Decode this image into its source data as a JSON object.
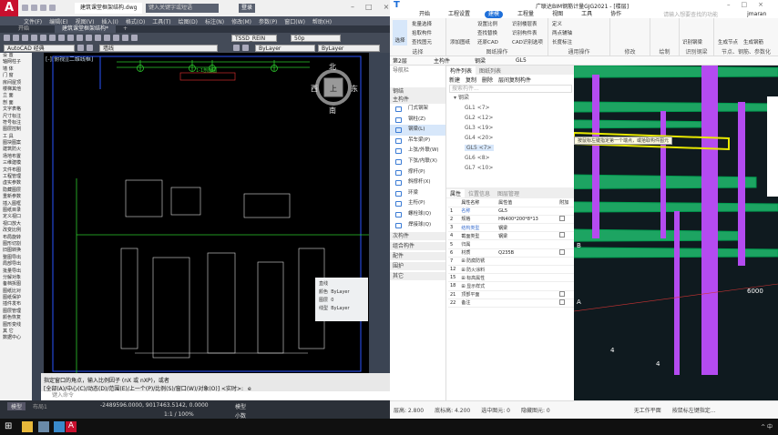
{
  "cad": {
    "title_file": "建筑课堂框架结构.dwg",
    "search_placeholder": "键入关键字或短语",
    "user": "登录",
    "menu": [
      "文件(F)",
      "编辑(E)",
      "视图(V)",
      "插入(I)",
      "格式(O)",
      "工具(T)",
      "绘图(D)",
      "标注(N)",
      "修改(M)",
      "参数(P)",
      "窗口(W)",
      "帮助(H)"
    ],
    "tabs": [
      "开始",
      "建筑课堂框架结构*"
    ],
    "workspace": "AutoCAD 经典",
    "layer": "墙线",
    "text_style": "TSSD_REIN",
    "dim_scale": "50p",
    "color": "ByLayer",
    "linetype": "ByLayer",
    "viewport_label": "[-][俯视][二维线框]",
    "viewcube": {
      "north": "北",
      "south": "南",
      "west": "西",
      "east": "东",
      "top": "上"
    },
    "palette_items": [
      "设  置",
      "轴网柱子",
      "墙  体",
      "门  窗",
      "房间屋顶",
      "楼梯其他",
      "立  面",
      "剖  面",
      "文字表格",
      "尺寸标注",
      "符号标注",
      "图层控制",
      "工  具",
      "图块图案",
      "建筑防火",
      "场地布置",
      "三维建模",
      "文件布图",
      "工程管理",
      "虚实参数",
      "隐藏图层",
      "重新参数",
      "插入图框",
      "图纸目录",
      "定义视口",
      "视口放大",
      "改变比例",
      "布局旋转",
      "图形切割",
      "旧图转换",
      "整图导出",
      "局部导出",
      "批量导出",
      "分解对象",
      "备档拆图",
      "图纸比对",
      "图纸保护",
      "插件发布",
      "图层管理",
      "颜色恢复",
      "图形变线",
      "其  它",
      "数据中心"
    ],
    "prop_popup": {
      "title": "直线",
      "color_label": "颜色",
      "color": "ByLayer",
      "layer_label": "图层",
      "layer": "0",
      "linetype_label": "线型",
      "linetype": "ByLayer"
    },
    "cmd_line1": "指定窗口的角点，输入比例因子 (nX 或 nXP)，或者",
    "cmd_line2": "[全部(A)/中心(C)/动态(D)/范围(E)/上一个(P)/比例(S)/窗口(W)/对象(O)] <实时>: _e",
    "cmd_placeholder": "键入命令",
    "layout_tabs": [
      "模型",
      "布局1"
    ],
    "coords": "-2489596.0000, 9017463.5142, 0.0000",
    "model_label": "模型",
    "scale": "1:1 / 100%",
    "units": "小数",
    "drawing_labels": {
      "title": "1-1剖面图",
      "axes": [
        "1",
        "2",
        "3",
        "4"
      ]
    }
  },
  "gd": {
    "title": "广联达BIM钢筋计量GJG2021 - [楼层]",
    "tabs": [
      "开始",
      "工程设置",
      "建模",
      "工程量",
      "视图",
      "工具",
      "协作"
    ],
    "active_tab": "建模",
    "search_placeholder": "请输入想要查找的功能",
    "user": "jmaran",
    "ribbon": {
      "select": {
        "big": "选择",
        "items": [
          "批量选择",
          "拾取构件",
          "查找图元"
        ],
        "label": "选择"
      },
      "drawing": {
        "big": "添加图纸",
        "items": [
          "设置比例",
          "查找替换",
          "还原CAD",
          "识别楼层表",
          "识别构件表",
          "CAD识别选项"
        ],
        "label": "图纸操作"
      },
      "common": {
        "items": [
          "定义",
          "两点辅轴",
          "长度标注"
        ],
        "label": "通用操作"
      },
      "modify": {
        "label": "修改"
      },
      "draw": {
        "label": "绘制"
      },
      "recognize": {
        "big": "识别钢梁",
        "label": "识别钢梁"
      },
      "node": {
        "items": [
          "生成节点",
          "生成钢筋"
        ],
        "label": "节点、钢筋、参数化"
      }
    },
    "bar": [
      "第2层",
      "主构件",
      "钢梁",
      "GL5"
    ],
    "nav_title": "导航栏",
    "nav_sections": [
      "钢结",
      "主构件"
    ],
    "nav_items": [
      "门式钢架",
      "钢柱(Z)",
      "钢梁(L)",
      "吊车梁(P)",
      "上弦/外联(W)",
      "下弦/内联(X)",
      "撑杆(P)",
      "斜撑杆(X)",
      "环梁",
      "主桁(P)",
      "螺栓球(Q)",
      "焊接球(Q)"
    ],
    "nav_active": "钢梁(L)",
    "nav_groups": [
      "次构件",
      "组合构件",
      "配件",
      "围护",
      "其它"
    ],
    "list_tabs": [
      "构件列表",
      "图纸列表"
    ],
    "list_actions": [
      "新建",
      "复制",
      "删除",
      "层间复制构件"
    ],
    "list_search": "搜索构件...",
    "list_group": "钢梁",
    "list_items": [
      "GL1 <7>",
      "GL2 <12>",
      "GL3 <19>",
      "GL4 <20>",
      "GL5 <7>",
      "GL6 <8>",
      "GL7 <10>"
    ],
    "list_active": "GL5 <7>",
    "prop_tabs": [
      "属性",
      "位置信息",
      "图层管理"
    ],
    "prop_headers": [
      "属性名称",
      "属性值",
      "附加"
    ],
    "props": [
      {
        "no": "1",
        "name": "名称",
        "value": "GL5",
        "chk": false,
        "blue": true
      },
      {
        "no": "2",
        "name": "规格",
        "value": "HN400*200*8*13",
        "chk": true
      },
      {
        "no": "3",
        "name": "结构类型",
        "value": "钢梁",
        "chk": false,
        "blue": true
      },
      {
        "no": "4",
        "name": "截面类型",
        "value": "钢梁",
        "chk": true
      },
      {
        "no": "5",
        "name": "归属",
        "value": "",
        "chk": false
      },
      {
        "no": "6",
        "name": "材质",
        "value": "Q235B",
        "chk": true
      },
      {
        "no": "7",
        "name": "⊞ 防腐防锈",
        "value": "",
        "chk": false
      },
      {
        "no": "12",
        "name": "⊞ 防火涂料",
        "value": "",
        "chk": false
      },
      {
        "no": "15",
        "name": "⊞ 标高属性",
        "value": "",
        "chk": false
      },
      {
        "no": "18",
        "name": "⊞ 显示样式",
        "value": "",
        "chk": false
      },
      {
        "no": "21",
        "name": "顶部平面",
        "value": "",
        "chk": true
      },
      {
        "no": "22",
        "name": "备注",
        "value": "",
        "chk": true
      }
    ],
    "tooltip": "按鼠标左键指定第一个端点，或拾取构件图元",
    "axis_labels": [
      "B",
      "A",
      "4",
      "4",
      "6000"
    ],
    "status": [
      "层高: 2.800",
      "底标高: 4.200",
      "选中图元: 0",
      "隐藏图元: 0"
    ],
    "workplane": "无工作平面",
    "hint": "按鼠标左键指定..."
  },
  "colors": {
    "beam": "#1fb36a",
    "column": "#b44bf0",
    "highlight": "#e8e800",
    "cad_bg": "#000000",
    "accent": "#1e6fd9"
  }
}
